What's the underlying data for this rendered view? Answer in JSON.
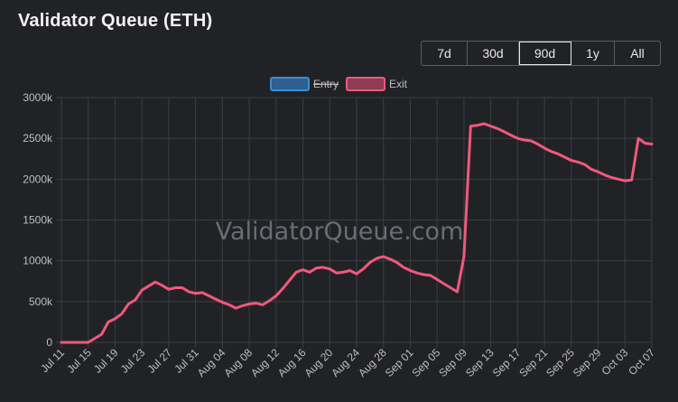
{
  "title": "Validator Queue (ETH)",
  "ranges": [
    {
      "label": "7d",
      "active": false
    },
    {
      "label": "30d",
      "active": false
    },
    {
      "label": "90d",
      "active": true
    },
    {
      "label": "1y",
      "active": false
    },
    {
      "label": "All",
      "active": false
    }
  ],
  "watermark": "ValidatorQueue.com",
  "colors": {
    "entry": "#3a8fd4",
    "exit": "#f0597c",
    "grid": "#3c3e43",
    "axis_text": "#bfbfbf",
    "watermark": "#6b6d73"
  },
  "chart_data": {
    "type": "line",
    "title": "",
    "xlabel": "",
    "ylabel": "",
    "ylim": [
      0,
      3000
    ],
    "yticks": [
      0,
      500,
      1000,
      1500,
      2000,
      2500,
      3000
    ],
    "ytick_labels": [
      "0",
      "500k",
      "1000k",
      "1500k",
      "2000k",
      "2500k",
      "3000k"
    ],
    "grid": true,
    "legend_position": "top-center",
    "xticks": [
      {
        "day": 0,
        "label": "Jul 11"
      },
      {
        "day": 4,
        "label": "Jul 15"
      },
      {
        "day": 8,
        "label": "Jul 19"
      },
      {
        "day": 12,
        "label": "Jul 23"
      },
      {
        "day": 16,
        "label": "Jul 27"
      },
      {
        "day": 20,
        "label": "Jul 31"
      },
      {
        "day": 24,
        "label": "Aug 04"
      },
      {
        "day": 28,
        "label": "Aug 08"
      },
      {
        "day": 32,
        "label": "Aug 12"
      },
      {
        "day": 36,
        "label": "Aug 16"
      },
      {
        "day": 40,
        "label": "Aug 20"
      },
      {
        "day": 44,
        "label": "Aug 24"
      },
      {
        "day": 48,
        "label": "Aug 28"
      },
      {
        "day": 52,
        "label": "Sep 01"
      },
      {
        "day": 56,
        "label": "Sep 05"
      },
      {
        "day": 60,
        "label": "Sep 09"
      },
      {
        "day": 64,
        "label": "Sep 13"
      },
      {
        "day": 68,
        "label": "Sep 17"
      },
      {
        "day": 72,
        "label": "Sep 21"
      },
      {
        "day": 76,
        "label": "Sep 25"
      },
      {
        "day": 80,
        "label": "Sep 29"
      },
      {
        "day": 84,
        "label": "Oct 03"
      },
      {
        "day": 88,
        "label": "Oct 07"
      }
    ],
    "xlim": [
      0,
      88
    ],
    "series": [
      {
        "name": "Entry",
        "hidden": true,
        "x": [],
        "y": []
      },
      {
        "name": "Exit",
        "hidden": false,
        "x": [
          0,
          1,
          2,
          3,
          4,
          5,
          6,
          7,
          8,
          9,
          10,
          11,
          12,
          13,
          14,
          15,
          16,
          17,
          18,
          19,
          20,
          21,
          22,
          23,
          24,
          25,
          26,
          27,
          28,
          29,
          30,
          31,
          32,
          33,
          34,
          35,
          36,
          37,
          38,
          39,
          40,
          41,
          42,
          43,
          44,
          45,
          46,
          47,
          48,
          49,
          50,
          51,
          52,
          53,
          54,
          55,
          56,
          57,
          58,
          59,
          60,
          61,
          62,
          63,
          64,
          65,
          66,
          67,
          68,
          69,
          70,
          71,
          72,
          73,
          74,
          75,
          76,
          77,
          78,
          79,
          80,
          81,
          82,
          83,
          84,
          85,
          86,
          87,
          88
        ],
        "y": [
          0,
          0,
          0,
          0,
          0,
          50,
          100,
          250,
          290,
          350,
          470,
          520,
          640,
          690,
          740,
          700,
          650,
          670,
          670,
          620,
          600,
          610,
          570,
          530,
          490,
          460,
          420,
          450,
          470,
          480,
          460,
          510,
          570,
          660,
          760,
          860,
          890,
          860,
          910,
          920,
          900,
          850,
          860,
          880,
          840,
          900,
          980,
          1030,
          1050,
          1020,
          980,
          920,
          880,
          850,
          830,
          820,
          770,
          720,
          670,
          620,
          1050,
          2650,
          2660,
          2680,
          2650,
          2620,
          2580,
          2540,
          2500,
          2480,
          2470,
          2430,
          2380,
          2340,
          2310,
          2270,
          2230,
          2210,
          2180,
          2120,
          2090,
          2050,
          2020,
          2000,
          1980,
          1990,
          2500,
          2440,
          2430
        ]
      }
    ]
  }
}
